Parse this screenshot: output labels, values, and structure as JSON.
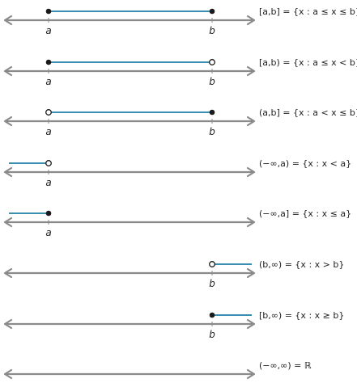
{
  "colors": {
    "axis": "#8a8a8a",
    "interval": "#3a8fb0",
    "point": "#1a1a1a",
    "text": "#222222"
  },
  "rows": [
    {
      "notation": "[a,b] = {x : a ≤ x ≤ b}",
      "segment": "a-b",
      "a_mark": "closed",
      "b_mark": "closed",
      "labels": [
        "a",
        "b"
      ]
    },
    {
      "notation": "[a,b) = {x : a ≤ x < b}",
      "segment": "a-b",
      "a_mark": "closed",
      "b_mark": "open",
      "labels": [
        "a",
        "b"
      ]
    },
    {
      "notation": "(a,b] = {x : a < x ≤ b}",
      "segment": "a-b",
      "a_mark": "open",
      "b_mark": "closed",
      "labels": [
        "a",
        "b"
      ]
    },
    {
      "notation": "(−∞,a) = {x : x < a}",
      "segment": "left-a",
      "a_mark": "open",
      "b_mark": "none",
      "labels": [
        "a"
      ]
    },
    {
      "notation": "(−∞,a] = {x : x ≤ a}",
      "segment": "left-a",
      "a_mark": "closed",
      "b_mark": "none",
      "labels": [
        "a"
      ]
    },
    {
      "notation": "(b,∞) = {x : x > b}",
      "segment": "b-right",
      "a_mark": "none",
      "b_mark": "open",
      "labels": [
        "b"
      ]
    },
    {
      "notation": "[b,∞) = {x : x ≥ b}",
      "segment": "b-right",
      "a_mark": "none",
      "b_mark": "closed",
      "labels": [
        "b"
      ]
    },
    {
      "notation": "(−∞,∞) = ℝ",
      "segment": "none",
      "a_mark": "none",
      "b_mark": "none",
      "labels": []
    }
  ]
}
